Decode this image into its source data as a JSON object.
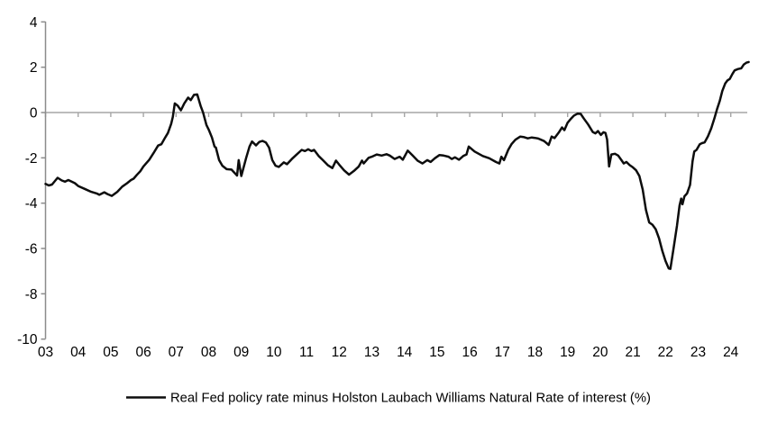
{
  "chart_data": {
    "type": "line",
    "title": "",
    "legend": {
      "position": "bottom-center",
      "label": "Real Fed policy rate minus Holston Laubach Williams Natural Rate of interest (%)"
    },
    "x_axis": {
      "tick_labels": [
        "03",
        "04",
        "05",
        "06",
        "07",
        "08",
        "09",
        "10",
        "11",
        "12",
        "13",
        "14",
        "15",
        "16",
        "17",
        "18",
        "19",
        "20",
        "21",
        "22",
        "23",
        "24"
      ],
      "tick_years": [
        2003,
        2004,
        2005,
        2006,
        2007,
        2008,
        2009,
        2010,
        2011,
        2012,
        2013,
        2014,
        2015,
        2016,
        2017,
        2018,
        2019,
        2020,
        2021,
        2022,
        2023,
        2024
      ],
      "range": [
        2003,
        2024.6
      ]
    },
    "y_axis": {
      "tick_values": [
        4,
        2,
        0,
        -2,
        -4,
        -6,
        -8,
        -10
      ],
      "tick_labels": [
        "4",
        "2",
        "0",
        "-2",
        "-4",
        "-6",
        "-8",
        "-10"
      ],
      "range": [
        -10,
        4
      ],
      "zero_gridline": true
    },
    "colors": {
      "line": "#0d0d0d",
      "zero_line": "#a6a6a6",
      "axis": "#8c8c8c",
      "text": "#000000",
      "background": "#ffffff"
    },
    "series": [
      {
        "name": "Real Fed policy rate minus Holston Laubach Williams Natural Rate of interest (%)",
        "x": [
          2003.0,
          2003.1,
          2003.2,
          2003.37,
          2003.5,
          2003.6,
          2003.7,
          2003.8,
          2003.9,
          2004.0,
          2004.2,
          2004.4,
          2004.57,
          2004.65,
          2004.8,
          2004.9,
          2005.03,
          2005.2,
          2005.35,
          2005.5,
          2005.62,
          2005.7,
          2005.8,
          2005.9,
          2006.0,
          2006.18,
          2006.31,
          2006.45,
          2006.55,
          2006.65,
          2006.75,
          2006.85,
          2006.9,
          2006.96,
          2007.05,
          2007.15,
          2007.25,
          2007.37,
          2007.45,
          2007.55,
          2007.65,
          2007.75,
          2007.83,
          2007.93,
          2008.0,
          2008.1,
          2008.18,
          2008.22,
          2008.32,
          2008.42,
          2008.55,
          2008.7,
          2008.87,
          2008.92,
          2009.0,
          2009.15,
          2009.25,
          2009.33,
          2009.45,
          2009.55,
          2009.65,
          2009.75,
          2009.85,
          2009.95,
          2010.05,
          2010.15,
          2010.3,
          2010.4,
          2010.55,
          2010.7,
          2010.85,
          2010.95,
          2011.05,
          2011.15,
          2011.23,
          2011.37,
          2011.5,
          2011.65,
          2011.79,
          2011.9,
          2012.0,
          2012.15,
          2012.3,
          2012.45,
          2012.6,
          2012.7,
          2012.75,
          2012.9,
          2013.0,
          2013.15,
          2013.3,
          2013.45,
          2013.55,
          2013.7,
          2013.85,
          2013.95,
          2014.1,
          2014.25,
          2014.4,
          2014.55,
          2014.7,
          2014.8,
          2014.93,
          2015.07,
          2015.2,
          2015.35,
          2015.45,
          2015.55,
          2015.67,
          2015.8,
          2015.9,
          2015.97,
          2016.15,
          2016.4,
          2016.6,
          2016.8,
          2016.91,
          2016.97,
          2017.05,
          2017.18,
          2017.28,
          2017.4,
          2017.55,
          2017.65,
          2017.78,
          2017.9,
          2018.0,
          2018.1,
          2018.28,
          2018.42,
          2018.51,
          2018.6,
          2018.74,
          2018.83,
          2018.9,
          2019.0,
          2019.1,
          2019.2,
          2019.3,
          2019.4,
          2019.5,
          2019.63,
          2019.77,
          2019.85,
          2019.93,
          2020.02,
          2020.1,
          2020.16,
          2020.21,
          2020.27,
          2020.34,
          2020.45,
          2020.55,
          2020.65,
          2020.72,
          2020.8,
          2020.9,
          2021.0,
          2021.1,
          2021.2,
          2021.3,
          2021.4,
          2021.5,
          2021.6,
          2021.7,
          2021.8,
          2021.9,
          2022.0,
          2022.1,
          2022.15,
          2022.25,
          2022.35,
          2022.43,
          2022.48,
          2022.52,
          2022.58,
          2022.66,
          2022.75,
          2022.83,
          2022.88,
          2022.95,
          2023.05,
          2023.12,
          2023.2,
          2023.3,
          2023.4,
          2023.5,
          2023.58,
          2023.66,
          2023.74,
          2023.83,
          2023.9,
          2023.97,
          2024.05,
          2024.12,
          2024.22,
          2024.32,
          2024.4,
          2024.48,
          2024.55
        ],
        "values": [
          -3.15,
          -3.22,
          -3.18,
          -2.88,
          -3.0,
          -3.05,
          -2.98,
          -3.05,
          -3.12,
          -3.24,
          -3.37,
          -3.5,
          -3.57,
          -3.63,
          -3.52,
          -3.6,
          -3.68,
          -3.5,
          -3.27,
          -3.12,
          -2.98,
          -2.92,
          -2.75,
          -2.6,
          -2.38,
          -2.08,
          -1.79,
          -1.46,
          -1.4,
          -1.15,
          -0.9,
          -0.5,
          -0.2,
          0.4,
          0.3,
          0.1,
          0.4,
          0.66,
          0.55,
          0.78,
          0.8,
          0.3,
          0.0,
          -0.55,
          -0.75,
          -1.1,
          -1.5,
          -1.55,
          -2.1,
          -2.35,
          -2.5,
          -2.52,
          -2.78,
          -2.1,
          -2.8,
          -2.0,
          -1.5,
          -1.28,
          -1.45,
          -1.3,
          -1.25,
          -1.32,
          -1.55,
          -2.1,
          -2.35,
          -2.4,
          -2.2,
          -2.28,
          -2.05,
          -1.85,
          -1.65,
          -1.7,
          -1.62,
          -1.7,
          -1.65,
          -1.92,
          -2.1,
          -2.32,
          -2.45,
          -2.12,
          -2.3,
          -2.55,
          -2.74,
          -2.58,
          -2.38,
          -2.12,
          -2.25,
          -2.0,
          -1.95,
          -1.85,
          -1.9,
          -1.84,
          -1.9,
          -2.05,
          -1.95,
          -2.08,
          -1.68,
          -1.9,
          -2.12,
          -2.25,
          -2.1,
          -2.18,
          -2.02,
          -1.88,
          -1.9,
          -1.95,
          -2.05,
          -1.98,
          -2.08,
          -1.92,
          -1.85,
          -1.5,
          -1.72,
          -1.92,
          -2.02,
          -2.18,
          -2.25,
          -1.95,
          -2.1,
          -1.65,
          -1.4,
          -1.2,
          -1.06,
          -1.08,
          -1.14,
          -1.1,
          -1.12,
          -1.15,
          -1.26,
          -1.43,
          -1.06,
          -1.13,
          -0.86,
          -0.66,
          -0.78,
          -0.45,
          -0.28,
          -0.13,
          -0.05,
          -0.06,
          -0.27,
          -0.53,
          -0.86,
          -0.92,
          -0.82,
          -0.99,
          -0.87,
          -0.9,
          -1.19,
          -2.38,
          -1.85,
          -1.82,
          -1.9,
          -2.1,
          -2.25,
          -2.18,
          -2.32,
          -2.42,
          -2.55,
          -2.8,
          -3.4,
          -4.3,
          -4.85,
          -4.95,
          -5.15,
          -5.55,
          -6.1,
          -6.55,
          -6.88,
          -6.9,
          -5.95,
          -5.0,
          -4.1,
          -3.8,
          -4.05,
          -3.7,
          -3.57,
          -3.2,
          -2.15,
          -1.72,
          -1.65,
          -1.4,
          -1.35,
          -1.32,
          -1.05,
          -0.7,
          -0.25,
          0.15,
          0.5,
          0.95,
          1.28,
          1.42,
          1.48,
          1.7,
          1.86,
          1.92,
          1.95,
          2.12,
          2.2,
          2.23
        ]
      }
    ]
  }
}
